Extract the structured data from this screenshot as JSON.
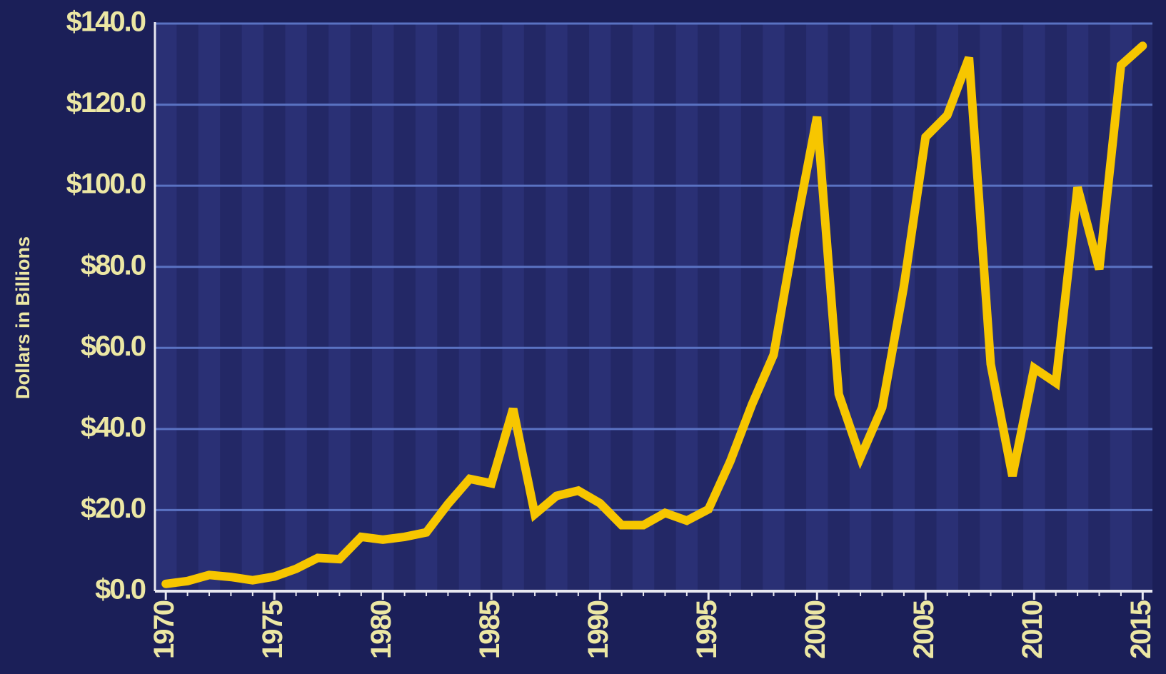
{
  "chart_data": {
    "type": "line",
    "y_axis_label": "Dollars in Billions",
    "x": [
      1970,
      1971,
      1972,
      1973,
      1974,
      1975,
      1976,
      1977,
      1978,
      1979,
      1980,
      1981,
      1982,
      1983,
      1984,
      1985,
      1986,
      1987,
      1988,
      1989,
      1990,
      1991,
      1992,
      1993,
      1994,
      1995,
      1996,
      1997,
      1998,
      1999,
      2000,
      2001,
      2002,
      2003,
      2004,
      2005,
      2006,
      2007,
      2008,
      2009,
      2010,
      2011,
      2012,
      2013,
      2014,
      2015
    ],
    "series": [
      {
        "color": "#f7c600",
        "values": [
          1.8,
          2.5,
          4,
          3.5,
          2.7,
          3.6,
          5.5,
          8.2,
          7.9,
          13.4,
          12.7,
          13.4,
          14.5,
          21.5,
          27.7,
          26.6,
          45,
          19,
          23.5,
          24.8,
          21.7,
          16.3,
          16.3,
          19.3,
          17.4,
          20.2,
          32,
          46,
          58.3,
          89,
          117,
          48.6,
          33,
          45.3,
          75.2,
          112,
          117.4,
          131.6,
          56,
          28.4,
          55,
          51.4,
          99.6,
          79.4,
          129.7,
          134.5
        ]
      }
    ],
    "xlim": [
      1969.5,
      2015.45
    ],
    "xticks": [
      1970,
      1975,
      1980,
      1985,
      1990,
      1995,
      2000,
      2005,
      2010,
      2015
    ],
    "ylim": [
      0,
      140
    ],
    "yticks": [
      {
        "value": 0,
        "label": "$0.0"
      },
      {
        "value": 20,
        "label": "$20.0"
      },
      {
        "value": 40,
        "label": "$40.0"
      },
      {
        "value": 60,
        "label": "$60.0"
      },
      {
        "value": 80,
        "label": "$80.0"
      },
      {
        "value": 100,
        "label": "$100.0"
      },
      {
        "value": 120,
        "label": "$120.0"
      },
      {
        "value": 140,
        "label": "$140.0"
      }
    ],
    "grid": true
  }
}
